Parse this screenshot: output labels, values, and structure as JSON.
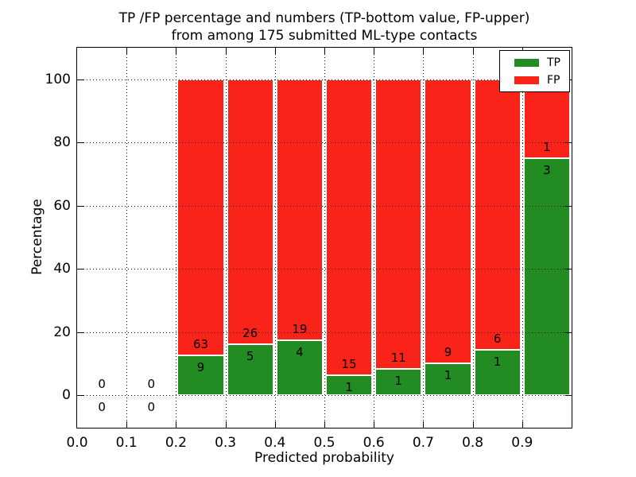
{
  "figure": {
    "title_line1": "TP /FP percentage and numbers (TP-bottom value, FP-upper)",
    "title_line2": "from among 175 submitted ML-type contacts",
    "background": "#ffffff"
  },
  "chart_data": {
    "type": "bar",
    "stacked": true,
    "normalized_to_percent": true,
    "title": "TP /FP percentage and numbers (TP-bottom value, FP-upper) from among 175 submitted ML-type contacts",
    "xlabel": "Predicted probability",
    "ylabel": "Percentage",
    "xlim": [
      0.0,
      1.0
    ],
    "ylim": [
      -10,
      110
    ],
    "grid": "dotted",
    "x_tick_labels": [
      "0.0",
      "0.1",
      "0.2",
      "0.3",
      "0.4",
      "0.5",
      "0.6",
      "0.7",
      "0.8",
      "0.9"
    ],
    "x_tick_values": [
      0.0,
      0.1,
      0.2,
      0.3,
      0.4,
      0.5,
      0.6,
      0.7,
      0.8,
      0.9
    ],
    "y_tick_labels": [
      "0",
      "20",
      "40",
      "60",
      "80",
      "100"
    ],
    "y_tick_values": [
      0,
      20,
      40,
      60,
      80,
      100
    ],
    "total_contacts": 175,
    "bins": [
      {
        "range": [
          0.0,
          0.1
        ],
        "tp": 0,
        "fp": 0
      },
      {
        "range": [
          0.1,
          0.2
        ],
        "tp": 0,
        "fp": 0
      },
      {
        "range": [
          0.2,
          0.3
        ],
        "tp": 9,
        "fp": 63
      },
      {
        "range": [
          0.3,
          0.4
        ],
        "tp": 5,
        "fp": 26
      },
      {
        "range": [
          0.4,
          0.5
        ],
        "tp": 4,
        "fp": 19
      },
      {
        "range": [
          0.5,
          0.6
        ],
        "tp": 1,
        "fp": 15
      },
      {
        "range": [
          0.6,
          0.7
        ],
        "tp": 1,
        "fp": 11
      },
      {
        "range": [
          0.7,
          0.8
        ],
        "tp": 1,
        "fp": 9
      },
      {
        "range": [
          0.8,
          0.9
        ],
        "tp": 1,
        "fp": 6
      },
      {
        "range": [
          0.9,
          1.0
        ],
        "tp": 3,
        "fp": 1
      }
    ],
    "series": [
      {
        "name": "TP",
        "counts": [
          0,
          0,
          9,
          5,
          4,
          1,
          1,
          1,
          1,
          3
        ],
        "color": "#228b22"
      },
      {
        "name": "FP",
        "counts": [
          0,
          0,
          63,
          26,
          19,
          15,
          11,
          9,
          6,
          1
        ],
        "color": "#fa231a"
      }
    ],
    "legend": {
      "position": "upper right",
      "entries": [
        {
          "label": "TP",
          "color": "#228b22"
        },
        {
          "label": "FP",
          "color": "#fa231a"
        }
      ]
    }
  },
  "colors": {
    "tp": "#228b22",
    "fp": "#fa231a",
    "grid": "#000000",
    "text": "#000000",
    "background": "#ffffff"
  }
}
